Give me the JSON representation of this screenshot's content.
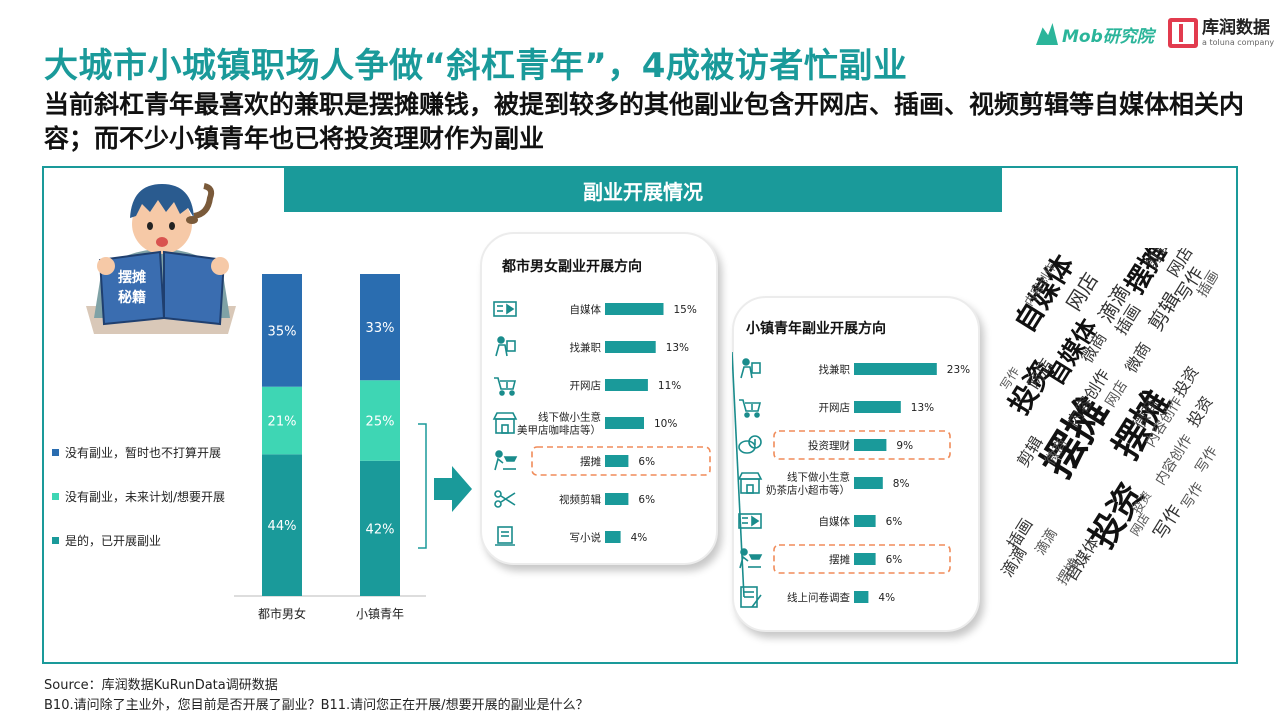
{
  "title": "大城市小城镇职场人争做“斜杠青年”，4成被访者忙副业",
  "subtitle": "当前斜杠青年最喜欢的兼职是摆摊赚钱，被提到较多的其他副业包含开网店、插画、视频剪辑等自媒体相关内容；而不少小镇青年也已将投资理财作为副业",
  "logos": {
    "mob": "Mob研究院",
    "kurun_name": "库润数据",
    "kurun_tag": "a toluna company"
  },
  "banner": "副业开展情况",
  "book_text": [
    "摆摊",
    "秘籍"
  ],
  "colors": {
    "teal": "#1a9a9a",
    "blue": "#2a6db0",
    "mint": "#3ed6b4",
    "bar": "#1a9a9a",
    "dash": "#f08c5a"
  },
  "chart_data": [
    {
      "type": "bar",
      "stacked": true,
      "categories": [
        "都市男女",
        "小镇青年"
      ],
      "series": [
        {
          "name": "没有副业，暂时也不打算开展",
          "color": "#2a6db0",
          "values": [
            35,
            33
          ]
        },
        {
          "name": "没有副业，未来计划/想要开展",
          "color": "#3ed6b4",
          "values": [
            21,
            25
          ]
        },
        {
          "name": "是的，已开展副业",
          "color": "#1a9a9a",
          "values": [
            44,
            42
          ]
        }
      ],
      "unit": "%",
      "legend_position": "left"
    },
    {
      "type": "bar",
      "orientation": "horizontal",
      "title": "都市男女副业开展方向",
      "categories": [
        "自媒体",
        "找兼职",
        "开网店",
        "线下做小生意\n美甲店咖啡店等）",
        "摆摊",
        "视频剪辑",
        "写小说"
      ],
      "icons": [
        "media-icon",
        "job-icon",
        "shop-cart-icon",
        "store-icon",
        "stall-icon",
        "scissors-icon",
        "writing-icon"
      ],
      "values": [
        15,
        13,
        11,
        10,
        6,
        6,
        4
      ],
      "labels": [
        "15%",
        "13%",
        "11%",
        "10%",
        "6%",
        "6%",
        "4%"
      ],
      "highlight": "摆摊"
    },
    {
      "type": "bar",
      "orientation": "horizontal",
      "title": "小镇青年副业开展方向",
      "categories": [
        "找兼职",
        "开网店",
        "投资理财",
        "线下做小生意\n奶茶店小超市等）",
        "自媒体",
        "摆摊",
        "线上问卷调查"
      ],
      "icons": [
        "job-icon",
        "shop-cart-icon",
        "coins-icon",
        "store-icon",
        "media-icon",
        "stall-icon",
        "survey-icon"
      ],
      "values": [
        23,
        13,
        9,
        8,
        6,
        6,
        4
      ],
      "labels": [
        "23%",
        "13%",
        "9%",
        "8%",
        "6%",
        "6%",
        "4%"
      ],
      "highlight": [
        "投资理财",
        "摆摊"
      ]
    }
  ],
  "wordcloud": [
    {
      "t": "摆摊",
      "l": 1024,
      "t0": 455,
      "s": 42,
      "r": -58,
      "w": "bold"
    },
    {
      "t": "摆摊",
      "l": 1098,
      "t0": 440,
      "s": 36,
      "r": -58,
      "w": "bold"
    },
    {
      "t": "投资",
      "l": 1075,
      "t0": 530,
      "s": 34,
      "r": -58,
      "w": "bold"
    },
    {
      "t": "自媒体",
      "l": 1004,
      "t0": 318,
      "s": 28,
      "r": -58,
      "w": "bold"
    },
    {
      "t": "自媒体",
      "l": 1036,
      "t0": 372,
      "s": 24,
      "r": -58,
      "w": "bold"
    },
    {
      "t": "投资",
      "l": 998,
      "t0": 400,
      "s": 28,
      "r": -58,
      "w": "bold"
    },
    {
      "t": "摆摊",
      "l": 1115,
      "t0": 280,
      "s": 26,
      "r": -58,
      "w": "bold"
    },
    {
      "t": "网店",
      "l": 1058,
      "t0": 300,
      "s": 20,
      "r": -58,
      "w": "normal"
    },
    {
      "t": "滴滴",
      "l": 1090,
      "t0": 312,
      "s": 20,
      "r": -58,
      "w": "normal"
    },
    {
      "t": "剪辑",
      "l": 1140,
      "t0": 320,
      "s": 20,
      "r": -58,
      "w": "normal"
    },
    {
      "t": "写作",
      "l": 1168,
      "t0": 292,
      "s": 18,
      "r": -58,
      "w": "normal"
    },
    {
      "t": "网店",
      "l": 1160,
      "t0": 268,
      "s": 16,
      "r": -58,
      "w": "normal"
    },
    {
      "t": "插画",
      "l": 1192,
      "t0": 290,
      "s": 14,
      "r": -58,
      "w": "normal"
    },
    {
      "t": "剪辑",
      "l": 1138,
      "t0": 260,
      "s": 16,
      "r": -58,
      "w": "normal"
    },
    {
      "t": "内容创作",
      "l": 1020,
      "t0": 300,
      "s": 12,
      "r": -58,
      "w": "normal"
    },
    {
      "t": "插画",
      "l": 1108,
      "t0": 326,
      "s": 16,
      "r": -58,
      "w": "normal"
    },
    {
      "t": "微商",
      "l": 1074,
      "t0": 354,
      "s": 16,
      "r": -58,
      "w": "normal"
    },
    {
      "t": "网店",
      "l": 1020,
      "t0": 380,
      "s": 16,
      "r": -58,
      "w": "normal"
    },
    {
      "t": "写作",
      "l": 996,
      "t0": 384,
      "s": 12,
      "r": -58,
      "w": "normal"
    },
    {
      "t": "微商",
      "l": 1118,
      "t0": 364,
      "s": 16,
      "r": -58,
      "w": "normal"
    },
    {
      "t": "内容创作",
      "l": 1060,
      "t0": 418,
      "s": 16,
      "r": -58,
      "w": "normal"
    },
    {
      "t": "网店",
      "l": 1100,
      "t0": 400,
      "s": 14,
      "r": -58,
      "w": "normal"
    },
    {
      "t": "投资",
      "l": 1166,
      "t0": 388,
      "s": 16,
      "r": -58,
      "w": "normal"
    },
    {
      "t": "投资",
      "l": 1180,
      "t0": 418,
      "s": 16,
      "r": -58,
      "w": "normal"
    },
    {
      "t": "微商",
      "l": 1126,
      "t0": 420,
      "s": 16,
      "r": -58,
      "w": "normal"
    },
    {
      "t": "内容创作",
      "l": 1140,
      "t0": 440,
      "s": 14,
      "r": -58,
      "w": "normal"
    },
    {
      "t": "内容创作",
      "l": 1150,
      "t0": 478,
      "s": 14,
      "r": -58,
      "w": "normal"
    },
    {
      "t": "写作",
      "l": 1190,
      "t0": 466,
      "s": 14,
      "r": -58,
      "w": "normal"
    },
    {
      "t": "剪辑",
      "l": 1010,
      "t0": 458,
      "s": 16,
      "r": -58,
      "w": "normal"
    },
    {
      "t": "微商",
      "l": 1040,
      "t0": 458,
      "s": 14,
      "r": -58,
      "w": "normal"
    },
    {
      "t": "插画",
      "l": 1000,
      "t0": 540,
      "s": 16,
      "r": -58,
      "w": "normal"
    },
    {
      "t": "滴滴",
      "l": 994,
      "t0": 568,
      "s": 16,
      "r": -58,
      "w": "normal"
    },
    {
      "t": "自媒体",
      "l": 1058,
      "t0": 572,
      "s": 16,
      "r": -58,
      "w": "normal"
    },
    {
      "t": "滴滴",
      "l": 1030,
      "t0": 548,
      "s": 14,
      "r": -58,
      "w": "normal"
    },
    {
      "t": "写作",
      "l": 1146,
      "t0": 530,
      "s": 18,
      "r": -58,
      "w": "normal"
    },
    {
      "t": "投资",
      "l": 1128,
      "t0": 508,
      "s": 12,
      "r": -58,
      "w": "normal"
    },
    {
      "t": "写作",
      "l": 1176,
      "t0": 502,
      "s": 14,
      "r": -58,
      "w": "normal"
    },
    {
      "t": "摆摊",
      "l": 1052,
      "t0": 578,
      "s": 14,
      "r": -58,
      "w": "normal"
    },
    {
      "t": "网店",
      "l": 1126,
      "t0": 530,
      "s": 12,
      "r": -58,
      "w": "normal"
    }
  ],
  "footer": {
    "source": "Source：库润数据KuRunData调研数据",
    "question": "B10.请问除了主业外，您目前是否开展了副业？B11.请问您正在开展/想要开展的副业是什么？"
  }
}
